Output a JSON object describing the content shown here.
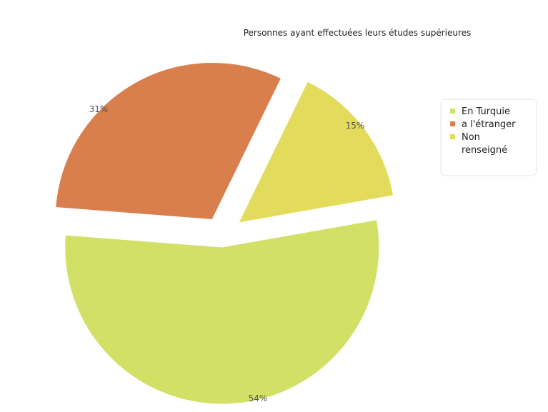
{
  "chart_data": {
    "type": "pie",
    "title": "Personnes ayant effectuées leurs études supérieures",
    "categories": [
      "En Turquie",
      "a l'étranger",
      "Non renseigné"
    ],
    "values": [
      54,
      31,
      15
    ],
    "labels": [
      "54%",
      "31%",
      "15%"
    ],
    "colors": [
      "#d2e066",
      "#d97f4e",
      "#e3db5c"
    ],
    "exploded": true,
    "legend_position": "right",
    "legend": [
      {
        "color": "#d2e066",
        "lines": [
          "En Turquie"
        ]
      },
      {
        "color": "#d97f4e",
        "lines": [
          "a l'étranger"
        ]
      },
      {
        "color": "#e3db5c",
        "lines": [
          "Non",
          "renseigné"
        ]
      }
    ]
  }
}
